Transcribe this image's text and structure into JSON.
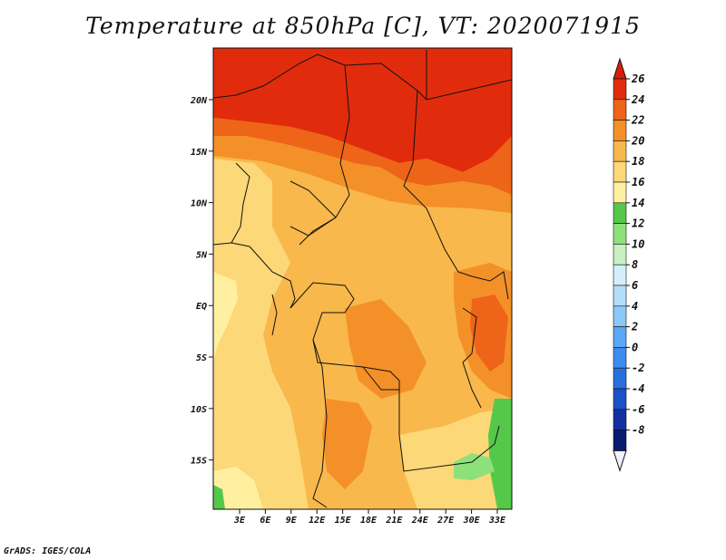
{
  "title": "Temperature at 850hPa [C], VT: 2020071915",
  "credit": "GrADS: IGES/COLA",
  "map": {
    "lat_labels": [
      "20N",
      "15N",
      "10N",
      "5N",
      "EQ",
      "5S",
      "10S",
      "15S"
    ],
    "lon_labels": [
      "3E",
      "6E",
      "9E",
      "12E",
      "15E",
      "18E",
      "21E",
      "24E",
      "27E",
      "30E",
      "33E"
    ]
  },
  "colorbar": {
    "levels": [
      "-8",
      "-6",
      "-4",
      "-2",
      "0",
      "2",
      "4",
      "6",
      "8",
      "10",
      "12",
      "14",
      "16",
      "18",
      "20",
      "22",
      "24",
      "26"
    ],
    "colors": [
      "#0a1a6e",
      "#1430a0",
      "#1a50c8",
      "#2a6fde",
      "#3c8cf0",
      "#5aa8f5",
      "#8cc8fa",
      "#b4ddfb",
      "#d4eefa",
      "#c8f0c0",
      "#8de07a",
      "#55c84a",
      "#fff0a0",
      "#fcd878",
      "#f8b84c",
      "#f49028",
      "#ee6418",
      "#e02c0c"
    ],
    "under_color": "#f0f0ff",
    "over_color": "#d81e0a"
  }
}
